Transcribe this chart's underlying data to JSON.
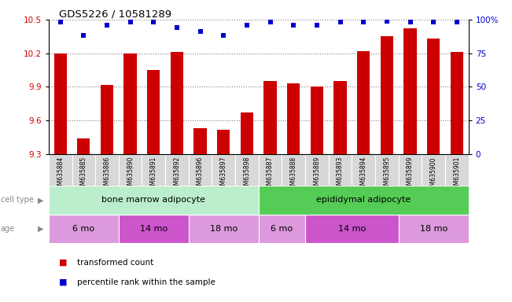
{
  "title": "GDS5226 / 10581289",
  "samples": [
    "GSM635884",
    "GSM635885",
    "GSM635886",
    "GSM635890",
    "GSM635891",
    "GSM635892",
    "GSM635896",
    "GSM635897",
    "GSM635898",
    "GSM635887",
    "GSM635888",
    "GSM635889",
    "GSM635893",
    "GSM635894",
    "GSM635895",
    "GSM635899",
    "GSM635900",
    "GSM635901"
  ],
  "bar_values": [
    10.2,
    9.44,
    9.92,
    10.2,
    10.05,
    10.21,
    9.53,
    9.52,
    9.67,
    9.95,
    9.93,
    9.9,
    9.95,
    10.22,
    10.35,
    10.42,
    10.33,
    10.21
  ],
  "percentile_values": [
    98,
    88,
    96,
    98,
    98,
    94,
    91,
    88,
    96,
    98,
    96,
    96,
    98,
    98,
    99,
    98,
    98,
    98
  ],
  "ylim_left": [
    9.3,
    10.5
  ],
  "yticks_left": [
    9.3,
    9.6,
    9.9,
    10.2,
    10.5
  ],
  "yticks_right_vals": [
    0,
    25,
    50,
    75,
    100
  ],
  "yticks_right_labels": [
    "0",
    "25",
    "50",
    "75",
    "100%"
  ],
  "bar_color": "#cc0000",
  "dot_color": "#0000cc",
  "cell_type_colors": [
    "#bbeecc",
    "#55cc55"
  ],
  "age_colors_list": [
    "#dd99dd",
    "#cc55cc",
    "#dd99dd",
    "#dd99dd",
    "#cc55cc",
    "#dd99dd"
  ],
  "cell_types": [
    {
      "label": "bone marrow adipocyte",
      "start": 0,
      "end": 9
    },
    {
      "label": "epididymal adipocyte",
      "start": 9,
      "end": 18
    }
  ],
  "ages": [
    {
      "label": "6 mo",
      "start": 0,
      "end": 3
    },
    {
      "label": "14 mo",
      "start": 3,
      "end": 6
    },
    {
      "label": "18 mo",
      "start": 6,
      "end": 9
    },
    {
      "label": "6 mo",
      "start": 9,
      "end": 11
    },
    {
      "label": "14 mo",
      "start": 11,
      "end": 15
    },
    {
      "label": "18 mo",
      "start": 15,
      "end": 18
    }
  ],
  "legend_items": [
    {
      "label": "transformed count",
      "color": "#cc0000"
    },
    {
      "label": "percentile rank within the sample",
      "color": "#0000cc"
    }
  ],
  "label_color_left": "#cc0000",
  "label_color_right": "#0000cc",
  "ticklabel_gray": "#888888",
  "arrow_color": "#888888"
}
